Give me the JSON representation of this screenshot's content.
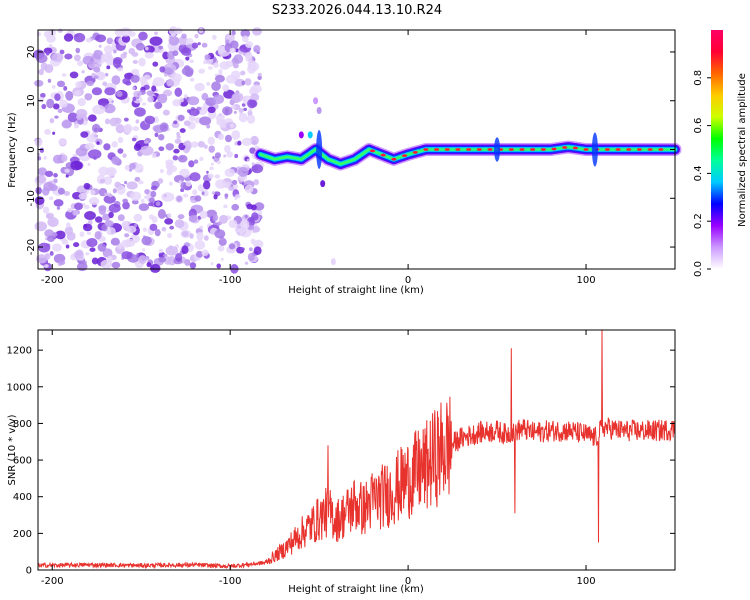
{
  "title": "S233.2026.044.13.10.R24",
  "chart_data": [
    {
      "type": "heatmap",
      "name": "spectrogram",
      "xlabel": "Height of straight line (km)",
      "ylabel": "Frequency (Hz)",
      "xlim": [
        -208,
        150
      ],
      "ylim": [
        -24.5,
        24.5
      ],
      "xticks": [
        -200,
        -100,
        0,
        100
      ],
      "yticks": [
        -20,
        -10,
        0,
        10,
        20
      ],
      "xtick_labels": [
        "-200",
        "-100",
        "0",
        "100"
      ],
      "ytick_labels": [
        "-20",
        "-10",
        "0",
        "10",
        "20"
      ],
      "noise_region_x": [
        -208,
        -83
      ],
      "ridge": {
        "description_values_only": true,
        "x": [
          -83,
          -75,
          -68,
          -60,
          -52,
          -45,
          -38,
          -30,
          -22,
          -15,
          -8,
          0,
          10,
          20,
          30,
          40,
          50,
          60,
          70,
          80,
          90,
          100,
          110,
          120,
          130,
          140,
          150
        ],
        "freq": [
          -1,
          -2,
          -1.5,
          -2,
          0,
          -2,
          -3,
          -2,
          0,
          -1,
          -2,
          -1,
          0,
          0,
          0,
          0,
          0,
          0,
          0,
          0,
          0.5,
          0,
          0,
          0,
          0,
          0,
          0
        ]
      },
      "colorbar": {
        "label": "Normalized spectral amplitude",
        "range": [
          0,
          1
        ],
        "ticks": [
          0.0,
          0.2,
          0.4,
          0.6,
          0.8
        ],
        "tick_labels": [
          "0.0",
          "0.2",
          "0.4",
          "0.6",
          "0.8"
        ],
        "colors": [
          "#ffffff",
          "#cc99ff",
          "#9900ff",
          "#0000ff",
          "#00ccff",
          "#00ff99",
          "#00ff00",
          "#ccff00",
          "#ffcc00",
          "#ff6600",
          "#ff0033",
          "#ff0066"
        ]
      }
    },
    {
      "type": "line",
      "name": "snr",
      "xlabel": "Height of straight line (km)",
      "ylabel": "SNR (10 * v/v)",
      "xlim": [
        -208,
        150
      ],
      "ylim": [
        0,
        1310
      ],
      "xticks": [
        -200,
        -100,
        0,
        100
      ],
      "yticks": [
        0,
        200,
        400,
        600,
        800,
        1000,
        1200
      ],
      "xtick_labels": [
        "-200",
        "-100",
        "0",
        "100"
      ],
      "ytick_labels": [
        "0",
        "200",
        "400",
        "600",
        "800",
        "1000",
        "1200"
      ],
      "color": "#e8322d",
      "series": [
        {
          "name": "SNR",
          "x": [
            -208,
            -180,
            -150,
            -120,
            -100,
            -90,
            -80,
            -70,
            -60,
            -50,
            -45,
            -40,
            -35,
            -30,
            -25,
            -20,
            -10,
            0,
            10,
            20,
            30,
            40,
            50,
            55,
            60,
            65,
            70,
            80,
            90,
            100,
            105,
            108,
            110,
            120,
            130,
            140,
            150
          ],
          "y": [
            25,
            28,
            25,
            28,
            20,
            30,
            40,
            110,
            200,
            280,
            320,
            270,
            310,
            360,
            330,
            380,
            420,
            500,
            560,
            660,
            720,
            750,
            760,
            740,
            760,
            770,
            750,
            760,
            760,
            740,
            720,
            760,
            780,
            760,
            760,
            760,
            770
          ],
          "spikes": [
            {
              "x": -45,
              "y": 680
            },
            {
              "x": 58,
              "y": 1210
            },
            {
              "x": 60,
              "y": 310
            },
            {
              "x": 107,
              "y": 150
            },
            {
              "x": 109,
              "y": 1310
            }
          ]
        }
      ]
    }
  ]
}
